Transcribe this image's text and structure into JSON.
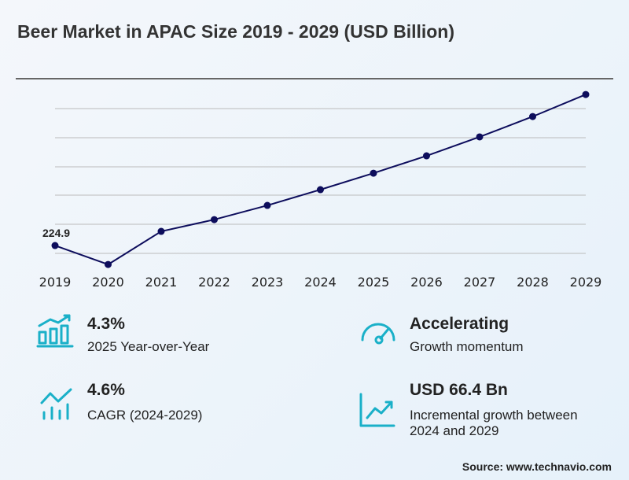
{
  "chart_data": {
    "type": "line",
    "title": "Beer Market in APAC Size 2019 - 2029 (USD Billion)",
    "categories": [
      "2019",
      "2020",
      "2021",
      "2022",
      "2023",
      "2024",
      "2025",
      "2026",
      "2027",
      "2028",
      "2029"
    ],
    "values": [
      224.9,
      211.7,
      234.8,
      243.0,
      252.9,
      263.9,
      275.4,
      287.5,
      300.7,
      314.9,
      330.3
    ],
    "color": "#0d0d5c",
    "ylim": [
      200,
      340
    ],
    "grid": true
  },
  "stats": [
    {
      "value": "4.3%",
      "label": "2025 Year-over-Year"
    },
    {
      "value": "Accelerating",
      "label": "Growth momentum"
    },
    {
      "value": "4.6%",
      "label": "CAGR (2024-2029)"
    },
    {
      "value": "USD 66.4 Bn",
      "label": "Incremental growth between 2024 and 2029"
    }
  ],
  "source": "Source: www.technavio.com"
}
